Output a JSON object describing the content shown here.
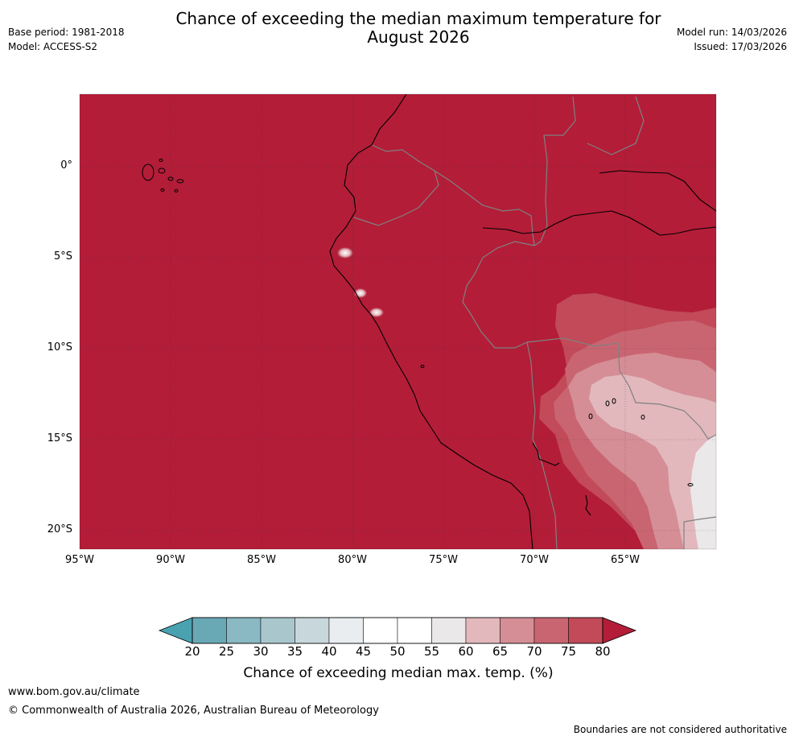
{
  "header": {
    "title_line1": "Chance of exceeding the median maximum temperature for",
    "title_line2": "August 2026",
    "base_period": "Base period: 1981-2018",
    "model": "Model: ACCESS-S2",
    "model_run": "Model run: 14/03/2026",
    "issued": "Issued: 17/03/2026"
  },
  "map": {
    "lat_labels": [
      "0°",
      "5°S",
      "10°S",
      "15°S",
      "20°S"
    ],
    "lon_labels": [
      "95°W",
      "90°W",
      "85°W",
      "80°W",
      "75°W",
      "70°W",
      "65°W"
    ],
    "colors": {
      "c80": "#b31d38",
      "c75": "#c24a59",
      "c70": "#c96571",
      "c65": "#d58e96",
      "c60": "#e2b8bd",
      "c55": "#ebe8e9",
      "land_border": "#808080",
      "coast": "#000000"
    }
  },
  "colorbar": {
    "ticks": [
      "20",
      "25",
      "30",
      "35",
      "40",
      "45",
      "50",
      "55",
      "60",
      "65",
      "70",
      "75",
      "80"
    ],
    "colors": [
      "#69a9b6",
      "#8ab8c3",
      "#a9c6cd",
      "#c8d7dc",
      "#e9edf0",
      "#ffffff",
      "#ffffff",
      "#ebe8e9",
      "#e2b8bd",
      "#d58e96",
      "#c96571",
      "#c24a59"
    ],
    "low_color": "#4aa2b1",
    "high_color": "#b31d38",
    "label": "Chance of exceeding median max. temp. (%)"
  },
  "footer": {
    "url": "www.bom.gov.au/climate",
    "copyright": "© Commonwealth of Australia 2026, Australian Bureau of Meteorology",
    "note": "Boundaries are not considered authoritative"
  }
}
